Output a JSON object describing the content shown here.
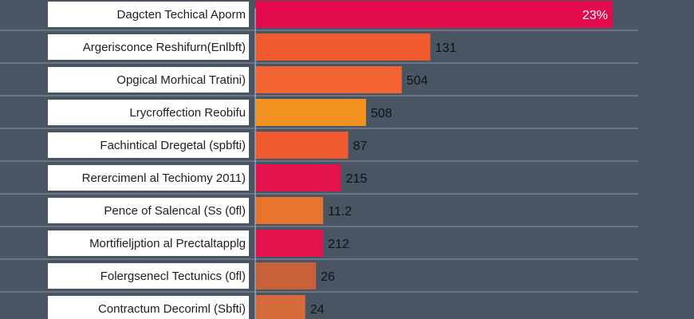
{
  "chart_data": {
    "type": "bar",
    "orientation": "horizontal",
    "categories": [
      "Dagcten Techical Aporm",
      "Argerisconce Reshifurn(Enlbft)",
      "Opgical Morhical Tratini)",
      "Lrycroffection Reobifu",
      "Fachintical Dregetal (spbfti)",
      "Rerercimenl al Techiomy 2011)",
      "Pence of Salencal (Ѕs (0fl)",
      "Mortifieljption al Prectaltapplg",
      "Folergsenecl Tectunics (0fl)",
      "Contractum Decoriml (Sbfti)"
    ],
    "value_labels": [
      "23%",
      "131",
      "504",
      "508",
      "87",
      "215",
      "11.2",
      "212",
      "26",
      "24"
    ],
    "values": [
      100,
      49,
      41,
      31,
      26,
      24,
      19,
      19,
      17,
      14
    ],
    "bar_colors": [
      "#e30b4b",
      "#f05a2f",
      "#f26532",
      "#f39221",
      "#f05a2f",
      "#e3134d",
      "#e8742e",
      "#e3134d",
      "#c8613a",
      "#d56a3a"
    ],
    "xlim": [
      0,
      100
    ],
    "grid": true,
    "legend": "none"
  },
  "colors": {
    "background": "#4a5564",
    "gridline": "#8a94a1",
    "axis_line": "#9aa3ae",
    "label_panel": "#ffffff",
    "label_text": "#1b1f25",
    "value_text": "#111111"
  }
}
